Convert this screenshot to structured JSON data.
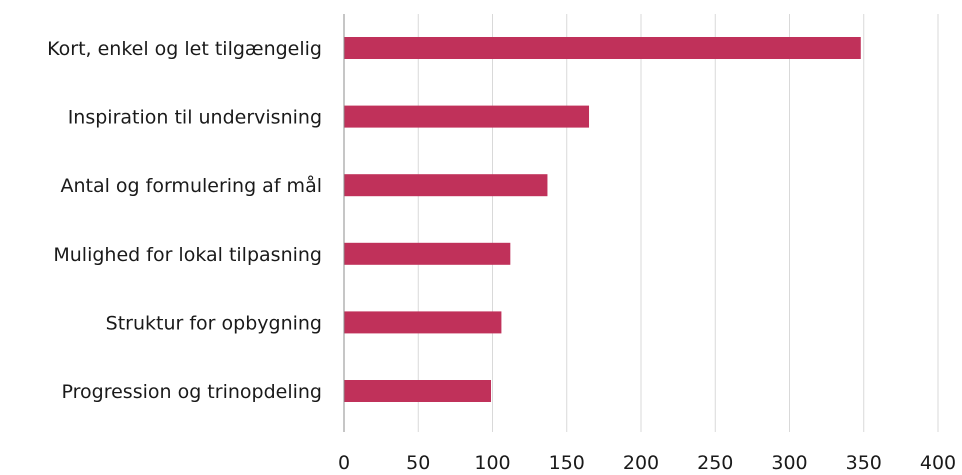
{
  "chart_data": {
    "type": "bar",
    "orientation": "horizontal",
    "title": "",
    "xlabel": "",
    "ylabel": "",
    "categories": [
      "Kort, enkel og let tilgængelig",
      "Inspiration til undervisning",
      "Antal og formulering af mål",
      "Mulighed for lokal tilpasning",
      "Struktur for opbygning",
      "Progression og trinopdeling"
    ],
    "values": [
      348,
      165,
      137,
      112,
      106,
      99
    ],
    "xlim": [
      0,
      400
    ],
    "xticks": [
      0,
      50,
      100,
      150,
      200,
      250,
      300,
      350,
      400
    ],
    "grid": "vertical",
    "legend": "none",
    "colors": {
      "bar": "#c0315a",
      "grid": "#d9d9d9",
      "axis": "#8c8c8c",
      "text": "#1a1a1a"
    }
  }
}
